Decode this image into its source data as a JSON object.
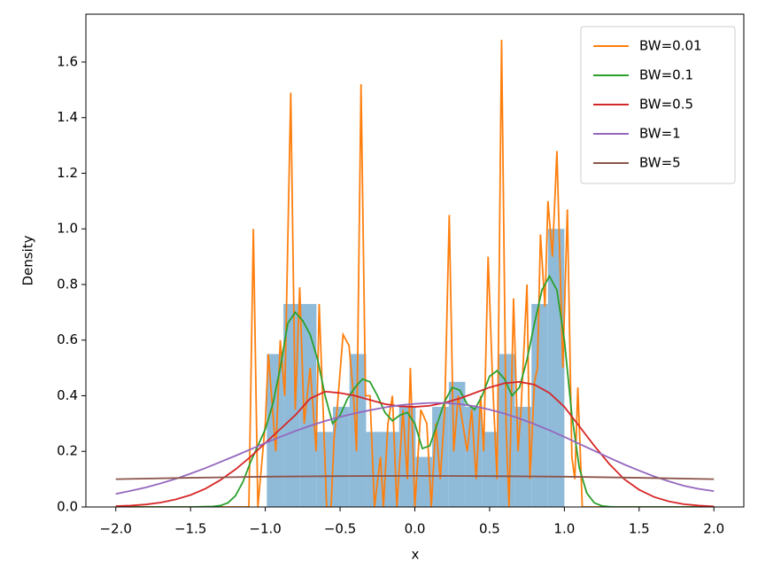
{
  "chart_data": {
    "type": "histogram",
    "x_label": "x",
    "y_label": "Density",
    "bins": [
      -0.99,
      -0.879,
      -0.769,
      -0.658,
      -0.548,
      -0.437,
      -0.326,
      -0.216,
      -0.105,
      0.005,
      0.116,
      0.227,
      0.337,
      0.448,
      0.558,
      0.669,
      0.78,
      0.89,
      1.0
    ],
    "values": [
      0.55,
      0.73,
      0.73,
      0.27,
      0.36,
      0.55,
      0.27,
      0.27,
      0.36,
      0.18,
      0.36,
      0.45,
      0.36,
      0.27,
      0.55,
      0.36,
      0.73,
      1.0
    ],
    "color": "#8fbbd9",
    "series": [
      {
        "name": "BW=0.01",
        "color": "#ff7f0e",
        "x": [
          -2,
          -1.11,
          -1.08,
          -1.05,
          -1.0,
          -0.98,
          -0.93,
          -0.9,
          -0.87,
          -0.83,
          -0.8,
          -0.77,
          -0.74,
          -0.7,
          -0.66,
          -0.64,
          -0.61,
          -0.59,
          -0.56,
          -0.54,
          -0.52,
          -0.48,
          -0.44,
          -0.41,
          -0.39,
          -0.36,
          -0.33,
          -0.3,
          -0.27,
          -0.23,
          -0.21,
          -0.18,
          -0.15,
          -0.12,
          -0.08,
          -0.05,
          -0.03,
          0,
          0.04,
          0.08,
          0.11,
          0.14,
          0.17,
          0.2,
          0.23,
          0.26,
          0.29,
          0.32,
          0.35,
          0.38,
          0.41,
          0.44,
          0.46,
          0.49,
          0.52,
          0.55,
          0.58,
          0.61,
          0.63,
          0.66,
          0.69,
          0.71,
          0.75,
          0.77,
          0.8,
          0.82,
          0.84,
          0.87,
          0.89,
          0.92,
          0.95,
          0.99,
          1.02,
          1.05,
          1.07,
          1.09,
          1.12,
          2
        ],
        "values": [
          0,
          0,
          1.0,
          0,
          0.3,
          0.55,
          0.2,
          0.6,
          0.4,
          1.49,
          0.35,
          0.79,
          0.3,
          0.5,
          0.2,
          0.73,
          0.3,
          0,
          0,
          0.25,
          0.35,
          0.62,
          0.58,
          0.4,
          0.2,
          1.52,
          0.4,
          0.4,
          0,
          0.18,
          0,
          0.3,
          0.4,
          0,
          0.35,
          0.1,
          0.5,
          0,
          0.35,
          0.3,
          0,
          0.3,
          0.1,
          0.35,
          1.05,
          0.2,
          0.4,
          0.3,
          0.2,
          0.35,
          0.1,
          0.4,
          0.2,
          0.9,
          0.45,
          0.1,
          1.68,
          0.3,
          0,
          0.75,
          0.2,
          0.35,
          0.8,
          0.1,
          0.45,
          0.5,
          0.98,
          0.72,
          1.1,
          0.9,
          1.28,
          0.5,
          1.07,
          0.18,
          0.1,
          0.43,
          0,
          0
        ]
      },
      {
        "name": "BW=0.1",
        "color": "#2ca02c",
        "x": [
          -2,
          -1.5,
          -1.35,
          -1.3,
          -1.25,
          -1.2,
          -1.15,
          -1.1,
          -1.05,
          -1.0,
          -0.95,
          -0.9,
          -0.85,
          -0.8,
          -0.75,
          -0.7,
          -0.65,
          -0.6,
          -0.55,
          -0.5,
          -0.45,
          -0.4,
          -0.35,
          -0.3,
          -0.25,
          -0.2,
          -0.15,
          -0.1,
          -0.05,
          0,
          0.05,
          0.1,
          0.15,
          0.2,
          0.25,
          0.3,
          0.35,
          0.4,
          0.45,
          0.5,
          0.55,
          0.6,
          0.65,
          0.7,
          0.75,
          0.8,
          0.85,
          0.9,
          0.95,
          1.0,
          1.05,
          1.1,
          1.15,
          1.2,
          1.25,
          1.3,
          1.35,
          1.5,
          2
        ],
        "values": [
          0,
          0,
          0.002,
          0.005,
          0.015,
          0.04,
          0.09,
          0.16,
          0.22,
          0.28,
          0.37,
          0.5,
          0.66,
          0.7,
          0.67,
          0.62,
          0.53,
          0.4,
          0.3,
          0.33,
          0.39,
          0.43,
          0.46,
          0.45,
          0.4,
          0.34,
          0.31,
          0.33,
          0.34,
          0.3,
          0.21,
          0.22,
          0.3,
          0.38,
          0.43,
          0.42,
          0.37,
          0.35,
          0.4,
          0.47,
          0.49,
          0.46,
          0.4,
          0.43,
          0.53,
          0.66,
          0.78,
          0.83,
          0.78,
          0.6,
          0.33,
          0.14,
          0.05,
          0.015,
          0.004,
          0.001,
          0,
          0,
          0
        ]
      },
      {
        "name": "BW=0.5",
        "color": "#d62728",
        "x": [
          -2.0,
          -1.9,
          -1.8,
          -1.7,
          -1.6,
          -1.5,
          -1.4,
          -1.3,
          -1.2,
          -1.1,
          -1.0,
          -0.9,
          -0.8,
          -0.7,
          -0.6,
          -0.5,
          -0.4,
          -0.3,
          -0.2,
          -0.1,
          0,
          0.1,
          0.2,
          0.3,
          0.4,
          0.5,
          0.6,
          0.7,
          0.8,
          0.9,
          1.0,
          1.1,
          1.2,
          1.3,
          1.4,
          1.5,
          1.6,
          1.7,
          1.8,
          1.9,
          2.0
        ],
        "values": [
          0.003,
          0.005,
          0.009,
          0.016,
          0.027,
          0.043,
          0.066,
          0.097,
          0.135,
          0.18,
          0.23,
          0.28,
          0.33,
          0.39,
          0.415,
          0.41,
          0.4,
          0.385,
          0.37,
          0.362,
          0.36,
          0.364,
          0.375,
          0.39,
          0.41,
          0.43,
          0.445,
          0.45,
          0.44,
          0.41,
          0.36,
          0.29,
          0.22,
          0.155,
          0.1,
          0.062,
          0.036,
          0.02,
          0.01,
          0.005,
          0.002
        ]
      },
      {
        "name": "BW=1",
        "color": "#9467bd",
        "x": [
          -2.0,
          -1.9,
          -1.8,
          -1.7,
          -1.6,
          -1.5,
          -1.4,
          -1.3,
          -1.2,
          -1.1,
          -1.0,
          -0.9,
          -0.8,
          -0.7,
          -0.6,
          -0.5,
          -0.4,
          -0.3,
          -0.2,
          -0.1,
          0,
          0.1,
          0.2,
          0.3,
          0.4,
          0.5,
          0.6,
          0.7,
          0.8,
          0.9,
          1.0,
          1.1,
          1.2,
          1.3,
          1.4,
          1.5,
          1.6,
          1.7,
          1.8,
          1.9,
          2.0
        ],
        "values": [
          0.047,
          0.058,
          0.07,
          0.085,
          0.101,
          0.12,
          0.14,
          0.162,
          0.184,
          0.207,
          0.23,
          0.252,
          0.273,
          0.292,
          0.309,
          0.324,
          0.337,
          0.348,
          0.358,
          0.366,
          0.371,
          0.374,
          0.374,
          0.37,
          0.362,
          0.35,
          0.336,
          0.318,
          0.298,
          0.276,
          0.252,
          0.227,
          0.202,
          0.177,
          0.153,
          0.131,
          0.11,
          0.092,
          0.076,
          0.065,
          0.057
        ]
      },
      {
        "name": "BW=5",
        "color": "#8c564b",
        "x": [
          -2.0,
          -1.5,
          -1.0,
          -0.5,
          0,
          0.5,
          1.0,
          1.5,
          2.0
        ],
        "values": [
          0.1,
          0.105,
          0.109,
          0.111,
          0.112,
          0.111,
          0.109,
          0.105,
          0.1
        ]
      }
    ],
    "xlim": [
      -2.2,
      2.2
    ],
    "ylim": [
      0,
      1.772
    ],
    "xticks": [
      {
        "value": -2,
        "label": "−2.0"
      },
      {
        "value": -1.5,
        "label": "−1.5"
      },
      {
        "value": -1,
        "label": "−1.0"
      },
      {
        "value": -0.5,
        "label": "−0.5"
      },
      {
        "value": 0,
        "label": "0.0"
      },
      {
        "value": 0.5,
        "label": "0.5"
      },
      {
        "value": 1,
        "label": "1.0"
      },
      {
        "value": 1.5,
        "label": "1.5"
      },
      {
        "value": 2,
        "label": "2.0"
      }
    ],
    "yticks": [
      {
        "value": 0,
        "label": "0.0"
      },
      {
        "value": 0.2,
        "label": "0.2"
      },
      {
        "value": 0.4,
        "label": "0.4"
      },
      {
        "value": 0.6,
        "label": "0.6"
      },
      {
        "value": 0.8,
        "label": "0.8"
      },
      {
        "value": 1.0,
        "label": "1.0"
      },
      {
        "value": 1.2,
        "label": "1.2"
      },
      {
        "value": 1.4,
        "label": "1.4"
      },
      {
        "value": 1.6,
        "label": "1.6"
      }
    ],
    "legend": "upper right"
  }
}
